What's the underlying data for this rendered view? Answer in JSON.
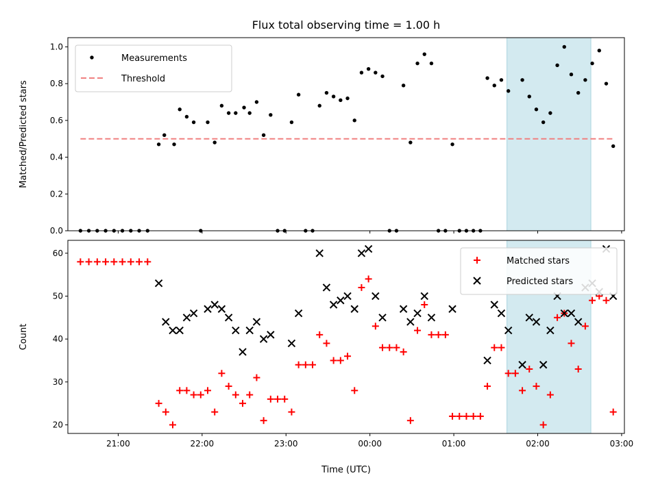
{
  "chart_data": [
    {
      "type": "scatter",
      "title": "Flux total observing time = 1.00 h",
      "xlabel": "",
      "ylabel": "Matched/Predicted stars",
      "xlim": [
        "20:24",
        "03:02"
      ],
      "ylim": [
        0,
        1.05
      ],
      "yticks": [
        "0.0",
        "0.2",
        "0.4",
        "0.6",
        "0.8",
        "1.0"
      ],
      "highlight_span": [
        "01:38",
        "02:38"
      ],
      "highlight_color": "#d3eaf0",
      "legend_position": "upper left",
      "series": [
        {
          "name": "Measurements",
          "marker": "dot",
          "color": "#000000",
          "points": [
            [
              "20:33",
              0
            ],
            [
              "20:39",
              0
            ],
            [
              "20:45",
              0
            ],
            [
              "20:51",
              0
            ],
            [
              "20:57",
              0
            ],
            [
              "21:03",
              0
            ],
            [
              "21:09",
              0
            ],
            [
              "21:15",
              0
            ],
            [
              "21:21",
              0
            ],
            [
              "21:29",
              0.47
            ],
            [
              "21:33",
              0.52
            ],
            [
              "21:40",
              0.47
            ],
            [
              "21:44",
              0.66
            ],
            [
              "21:49",
              0.62
            ],
            [
              "21:54",
              0.59
            ],
            [
              "21:59",
              0
            ],
            [
              "22:04",
              0.59
            ],
            [
              "22:09",
              0.48
            ],
            [
              "22:14",
              0.68
            ],
            [
              "22:19",
              0.64
            ],
            [
              "22:24",
              0.64
            ],
            [
              "22:30",
              0.67
            ],
            [
              "22:34",
              0.64
            ],
            [
              "22:39",
              0.7
            ],
            [
              "22:44",
              0.52
            ],
            [
              "22:49",
              0.63
            ],
            [
              "22:54",
              0
            ],
            [
              "22:59",
              0
            ],
            [
              "23:04",
              0.59
            ],
            [
              "23:09",
              0.74
            ],
            [
              "23:14",
              0
            ],
            [
              "23:19",
              0
            ],
            [
              "23:24",
              0.68
            ],
            [
              "23:29",
              0.75
            ],
            [
              "23:34",
              0.73
            ],
            [
              "23:39",
              0.71
            ],
            [
              "23:44",
              0.72
            ],
            [
              "23:49",
              0.6
            ],
            [
              "23:54",
              0.86
            ],
            [
              "23:59",
              0.88
            ],
            [
              "00:04",
              0.86
            ],
            [
              "00:09",
              0.84
            ],
            [
              "00:14",
              0
            ],
            [
              "00:19",
              0
            ],
            [
              "00:24",
              0.79
            ],
            [
              "00:29",
              0.48
            ],
            [
              "00:34",
              0.91
            ],
            [
              "00:39",
              0.96
            ],
            [
              "00:44",
              0.91
            ],
            [
              "00:49",
              0
            ],
            [
              "00:54",
              0
            ],
            [
              "00:59",
              0.47
            ],
            [
              "01:04",
              0
            ],
            [
              "01:09",
              0
            ],
            [
              "01:14",
              0
            ],
            [
              "01:19",
              0
            ],
            [
              "01:24",
              0.83
            ],
            [
              "01:29",
              0.79
            ],
            [
              "01:34",
              0.82
            ],
            [
              "01:39",
              0.76
            ],
            [
              "01:49",
              0.82
            ],
            [
              "01:54",
              0.73
            ],
            [
              "01:59",
              0.66
            ],
            [
              "02:04",
              0.59
            ],
            [
              "02:09",
              0.64
            ],
            [
              "02:14",
              0.9
            ],
            [
              "02:19",
              1.0
            ],
            [
              "02:24",
              0.85
            ],
            [
              "02:29",
              0.75
            ],
            [
              "02:34",
              0.82
            ],
            [
              "02:39",
              0.91
            ],
            [
              "02:44",
              0.98
            ],
            [
              "02:49",
              0.8
            ],
            [
              "02:54",
              0.46
            ]
          ]
        },
        {
          "name": "Threshold",
          "marker": "dashed-line",
          "color": "#f08080",
          "points": [
            [
              "20:33",
              0.5
            ],
            [
              "02:54",
              0.5
            ]
          ]
        }
      ]
    },
    {
      "type": "scatter",
      "title": "",
      "xlabel": "Time (UTC)",
      "ylabel": "Count",
      "xlim": [
        "20:24",
        "03:02"
      ],
      "ylim": [
        18,
        63
      ],
      "yticks": [
        "20",
        "30",
        "40",
        "50",
        "60"
      ],
      "xticks": [
        "21:00",
        "22:00",
        "23:00",
        "00:00",
        "01:00",
        "02:00",
        "03:00"
      ],
      "highlight_span": [
        "01:38",
        "02:38"
      ],
      "highlight_color": "#d3eaf0",
      "legend_position": "upper right",
      "series": [
        {
          "name": "Matched stars",
          "marker": "plus",
          "color": "#ff0000",
          "points": [
            [
              "20:33",
              58
            ],
            [
              "20:39",
              58
            ],
            [
              "20:45",
              58
            ],
            [
              "20:51",
              58
            ],
            [
              "20:57",
              58
            ],
            [
              "21:03",
              58
            ],
            [
              "21:09",
              58
            ],
            [
              "21:15",
              58
            ],
            [
              "21:21",
              58
            ],
            [
              "21:29",
              25
            ],
            [
              "21:34",
              23
            ],
            [
              "21:39",
              20
            ],
            [
              "21:44",
              28
            ],
            [
              "21:49",
              28
            ],
            [
              "21:54",
              27
            ],
            [
              "21:59",
              27
            ],
            [
              "22:04",
              28
            ],
            [
              "22:09",
              23
            ],
            [
              "22:14",
              32
            ],
            [
              "22:19",
              29
            ],
            [
              "22:24",
              27
            ],
            [
              "22:29",
              25
            ],
            [
              "22:34",
              27
            ],
            [
              "22:39",
              31
            ],
            [
              "22:44",
              21
            ],
            [
              "22:49",
              26
            ],
            [
              "22:54",
              26
            ],
            [
              "22:59",
              26
            ],
            [
              "23:04",
              23
            ],
            [
              "23:09",
              34
            ],
            [
              "23:14",
              34
            ],
            [
              "23:19",
              34
            ],
            [
              "23:24",
              41
            ],
            [
              "23:29",
              39
            ],
            [
              "23:34",
              35
            ],
            [
              "23:39",
              35
            ],
            [
              "23:44",
              36
            ],
            [
              "23:49",
              28
            ],
            [
              "23:54",
              52
            ],
            [
              "23:59",
              54
            ],
            [
              "00:04",
              43
            ],
            [
              "00:09",
              38
            ],
            [
              "00:14",
              38
            ],
            [
              "00:19",
              38
            ],
            [
              "00:24",
              37
            ],
            [
              "00:29",
              21
            ],
            [
              "00:34",
              42
            ],
            [
              "00:39",
              48
            ],
            [
              "00:44",
              41
            ],
            [
              "00:49",
              41
            ],
            [
              "00:54",
              41
            ],
            [
              "00:59",
              22
            ],
            [
              "01:04",
              22
            ],
            [
              "01:09",
              22
            ],
            [
              "01:14",
              22
            ],
            [
              "01:19",
              22
            ],
            [
              "01:24",
              29
            ],
            [
              "01:29",
              38
            ],
            [
              "01:34",
              38
            ],
            [
              "01:39",
              32
            ],
            [
              "01:44",
              32
            ],
            [
              "01:49",
              28
            ],
            [
              "01:54",
              33
            ],
            [
              "01:59",
              29
            ],
            [
              "02:04",
              20
            ],
            [
              "02:09",
              27
            ],
            [
              "02:14",
              45
            ],
            [
              "02:19",
              46
            ],
            [
              "02:24",
              39
            ],
            [
              "02:29",
              33
            ],
            [
              "02:34",
              43
            ],
            [
              "02:39",
              49
            ],
            [
              "02:44",
              50
            ],
            [
              "02:49",
              49
            ],
            [
              "02:54",
              23
            ]
          ]
        },
        {
          "name": "Predicted stars",
          "marker": "x",
          "color": "#000000",
          "points": [
            [
              "21:29",
              53
            ],
            [
              "21:34",
              44
            ],
            [
              "21:39",
              42
            ],
            [
              "21:44",
              42
            ],
            [
              "21:49",
              45
            ],
            [
              "21:54",
              46
            ],
            [
              "22:04",
              47
            ],
            [
              "22:09",
              48
            ],
            [
              "22:14",
              47
            ],
            [
              "22:19",
              45
            ],
            [
              "22:24",
              42
            ],
            [
              "22:29",
              37
            ],
            [
              "22:34",
              42
            ],
            [
              "22:39",
              44
            ],
            [
              "22:44",
              40
            ],
            [
              "22:49",
              41
            ],
            [
              "23:04",
              39
            ],
            [
              "23:09",
              46
            ],
            [
              "23:24",
              60
            ],
            [
              "23:29",
              52
            ],
            [
              "23:34",
              48
            ],
            [
              "23:39",
              49
            ],
            [
              "23:44",
              50
            ],
            [
              "23:49",
              47
            ],
            [
              "23:54",
              60
            ],
            [
              "23:59",
              61
            ],
            [
              "00:04",
              50
            ],
            [
              "00:09",
              45
            ],
            [
              "00:24",
              47
            ],
            [
              "00:29",
              44
            ],
            [
              "00:34",
              46
            ],
            [
              "00:39",
              50
            ],
            [
              "00:44",
              45
            ],
            [
              "00:59",
              47
            ],
            [
              "01:24",
              35
            ],
            [
              "01:29",
              48
            ],
            [
              "01:34",
              46
            ],
            [
              "01:39",
              42
            ],
            [
              "01:49",
              34
            ],
            [
              "01:54",
              45
            ],
            [
              "01:59",
              44
            ],
            [
              "02:04",
              34
            ],
            [
              "02:09",
              42
            ],
            [
              "02:14",
              50
            ],
            [
              "02:19",
              46
            ],
            [
              "02:24",
              46
            ],
            [
              "02:29",
              44
            ],
            [
              "02:34",
              52
            ],
            [
              "02:39",
              53
            ],
            [
              "02:44",
              51
            ],
            [
              "02:49",
              61
            ],
            [
              "02:54",
              50
            ]
          ]
        }
      ]
    }
  ]
}
